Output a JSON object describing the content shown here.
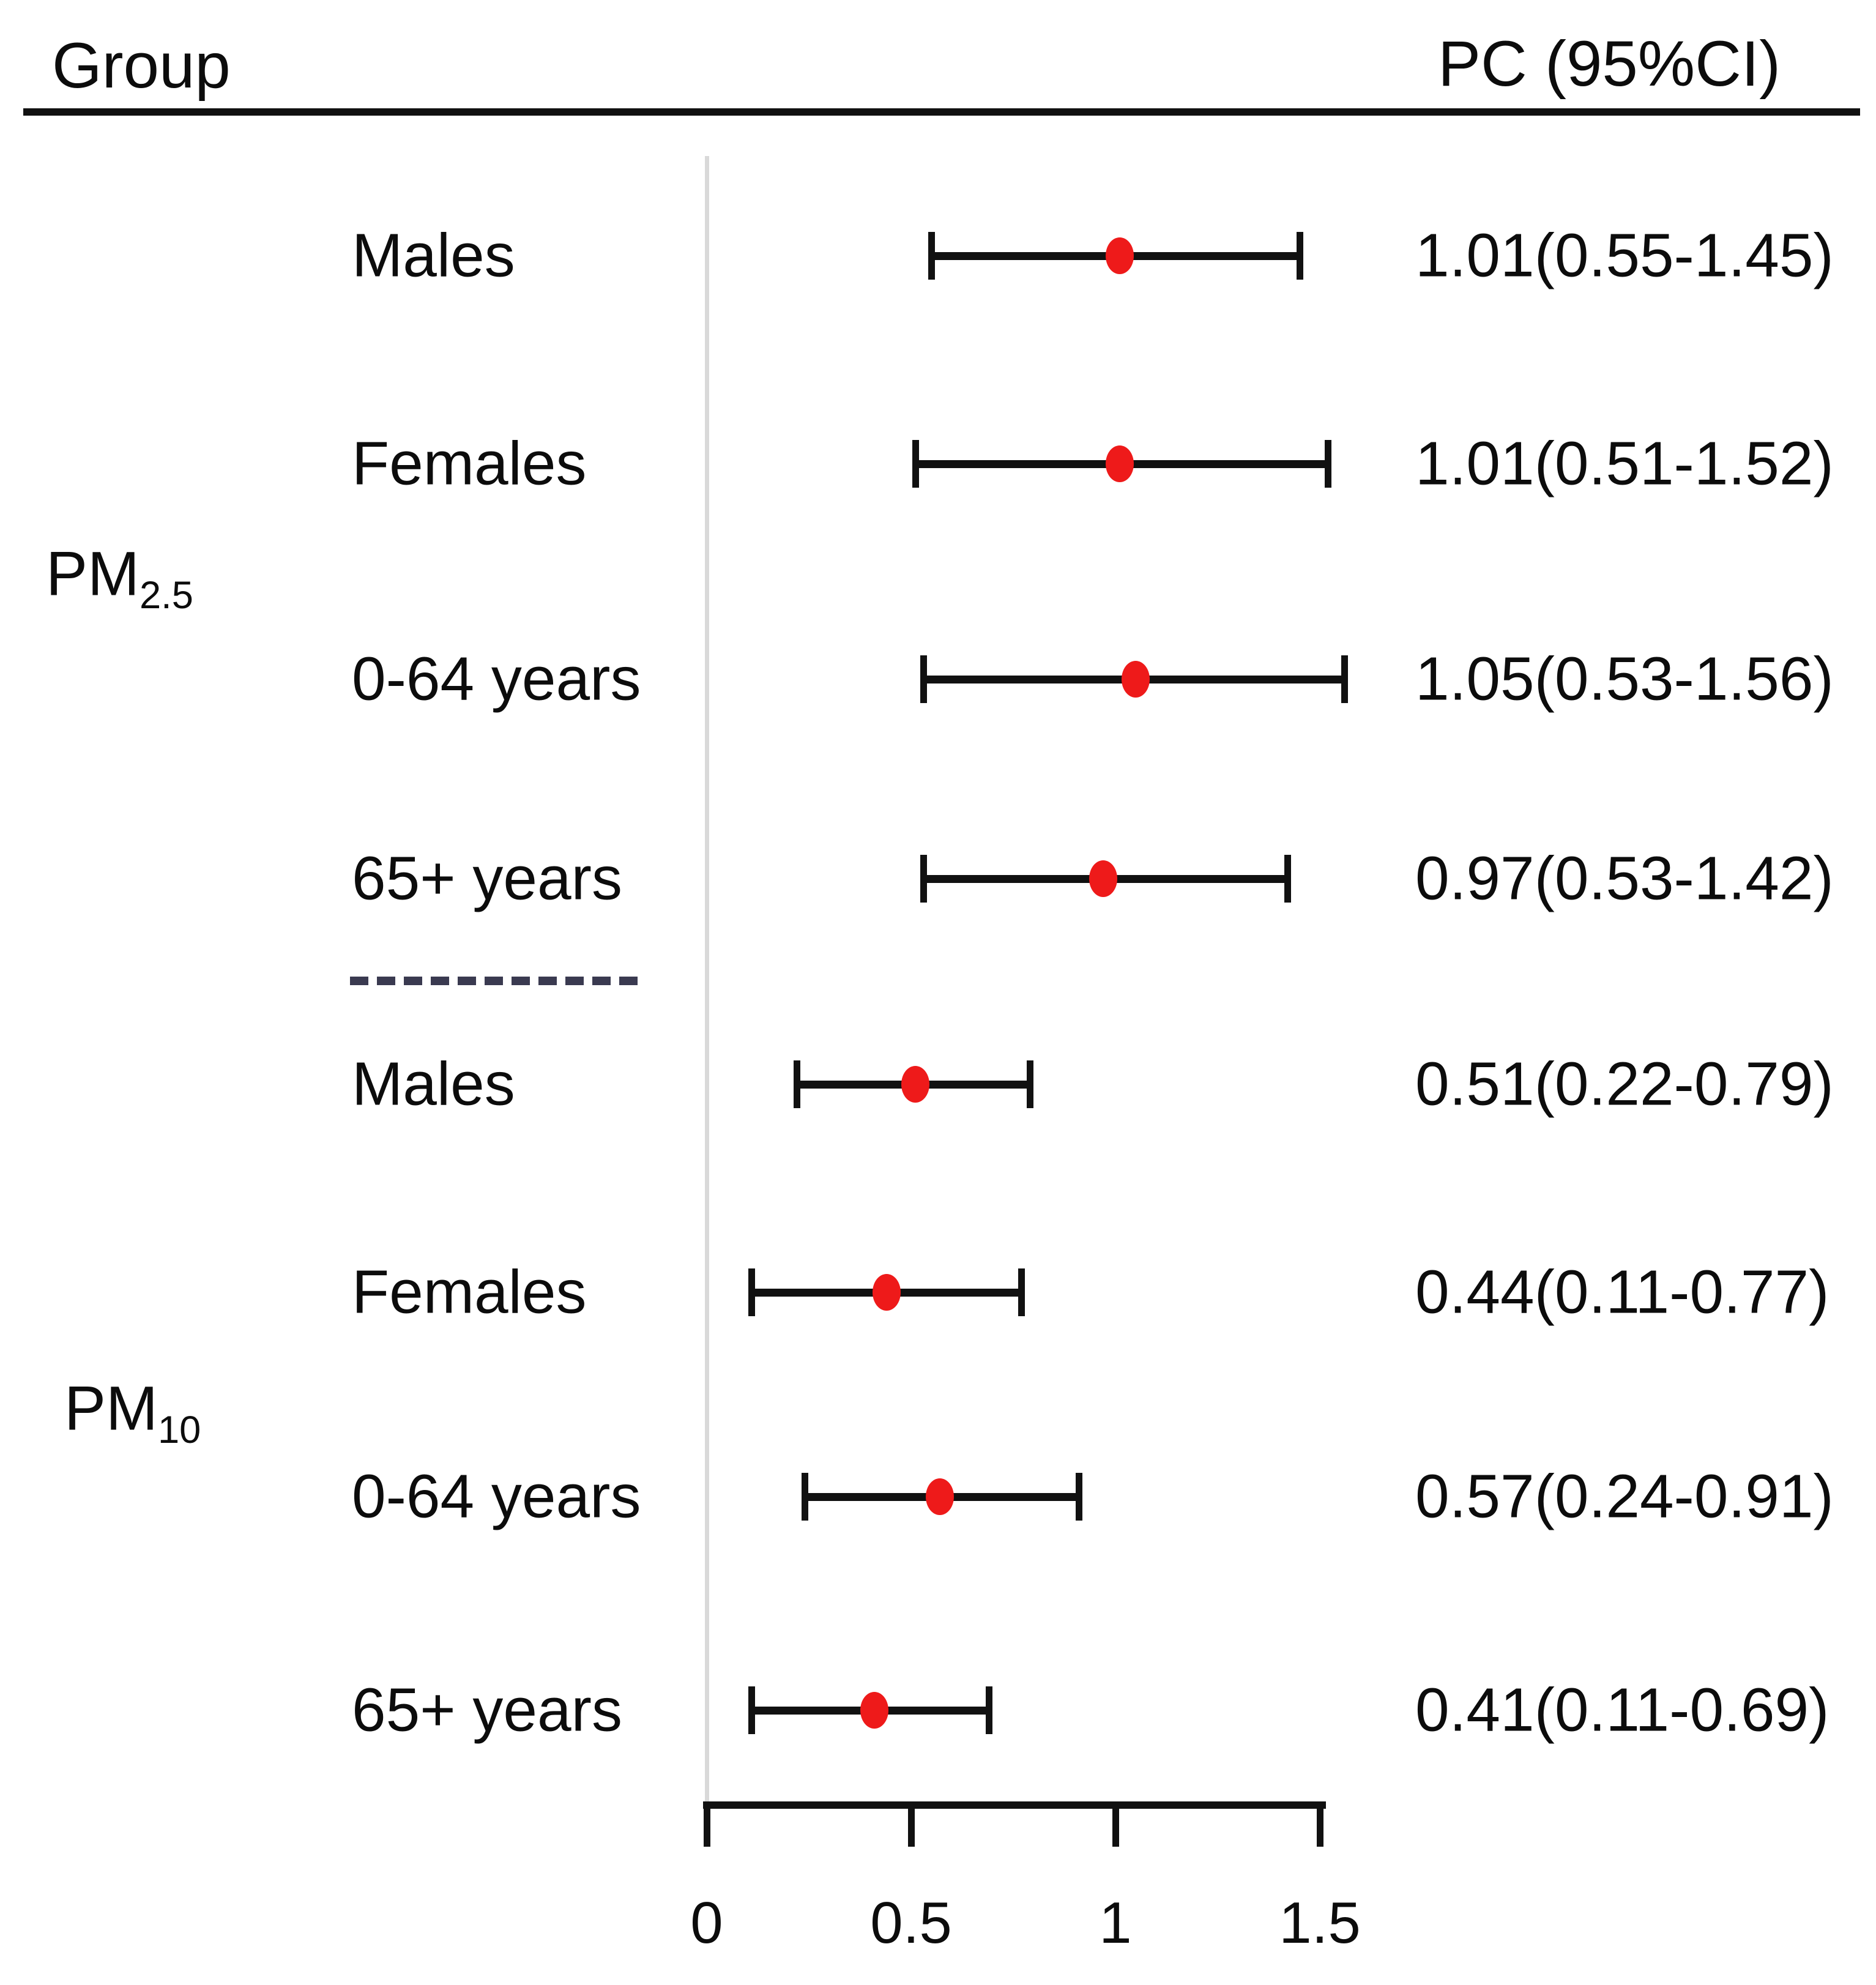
{
  "header": {
    "group_label": "Group",
    "pc_label": "PC (95%CI)"
  },
  "sections": [
    {
      "main": "PM",
      "sub": "2.5"
    },
    {
      "main": "PM",
      "sub": "10"
    }
  ],
  "colors": {
    "marker": "#ee1a1a",
    "whisker": "#111111",
    "reference_line": "#d9d9d9",
    "divider": "#3a3a50",
    "text": "#0c0c0c"
  },
  "chart_data": {
    "type": "forest",
    "title": "",
    "xlabel": "",
    "xlim": [
      0,
      1.5
    ],
    "tick_values": [
      0,
      0.5,
      1,
      1.5
    ],
    "tick_labels": [
      "0",
      "0.5",
      "1",
      "1.5"
    ],
    "grid": false,
    "reference_line_x": 0,
    "rows": [
      {
        "section": "PM2.5",
        "label": "Males",
        "pc": 1.01,
        "lo": 0.55,
        "hi": 1.45,
        "text": "1.01(0.55-1.45)"
      },
      {
        "section": "PM2.5",
        "label": "Females",
        "pc": 1.01,
        "lo": 0.51,
        "hi": 1.52,
        "text": "1.01(0.51-1.52)"
      },
      {
        "section": "PM2.5",
        "label": "0-64 years",
        "pc": 1.05,
        "lo": 0.53,
        "hi": 1.56,
        "text": "1.05(0.53-1.56)"
      },
      {
        "section": "PM2.5",
        "label": "65+ years",
        "pc": 0.97,
        "lo": 0.53,
        "hi": 1.42,
        "text": "0.97(0.53-1.42)"
      },
      {
        "section": "PM10",
        "label": "Males",
        "pc": 0.51,
        "lo": 0.22,
        "hi": 0.79,
        "text": "0.51(0.22-0.79)"
      },
      {
        "section": "PM10",
        "label": "Females",
        "pc": 0.44,
        "lo": 0.11,
        "hi": 0.77,
        "text": "0.44(0.11-0.77)"
      },
      {
        "section": "PM10",
        "label": "0-64 years",
        "pc": 0.57,
        "lo": 0.24,
        "hi": 0.91,
        "text": "0.57(0.24-0.91)"
      },
      {
        "section": "PM10",
        "label": "65+ years",
        "pc": 0.41,
        "lo": 0.11,
        "hi": 0.69,
        "text": "0.41(0.11-0.69)"
      }
    ]
  }
}
